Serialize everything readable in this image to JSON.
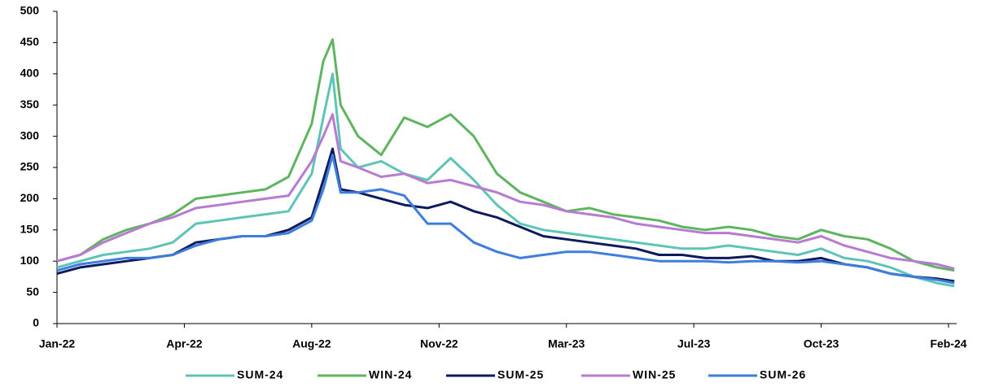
{
  "chart_data": {
    "type": "line",
    "x": [
      0,
      20,
      40,
      60,
      80,
      100,
      120,
      140,
      160,
      180,
      200,
      220,
      230,
      238,
      245,
      260,
      280,
      300,
      320,
      340,
      360,
      380,
      400,
      420,
      440,
      460,
      480,
      500,
      520,
      540,
      560,
      580,
      600,
      620,
      640,
      660,
      680,
      700,
      720,
      740,
      760,
      775
    ],
    "series": [
      {
        "name": "SUM-24",
        "color": "#5ec4b6",
        "values": [
          90,
          100,
          110,
          115,
          120,
          130,
          160,
          165,
          170,
          175,
          180,
          240,
          330,
          400,
          280,
          250,
          260,
          240,
          230,
          265,
          230,
          190,
          160,
          150,
          145,
          140,
          135,
          130,
          125,
          120,
          120,
          125,
          120,
          115,
          110,
          120,
          105,
          100,
          90,
          75,
          65,
          60
        ]
      },
      {
        "name": "WIN-24",
        "color": "#5fb45f",
        "values": [
          100,
          110,
          135,
          150,
          160,
          175,
          200,
          205,
          210,
          215,
          235,
          320,
          420,
          455,
          350,
          300,
          270,
          330,
          315,
          335,
          300,
          240,
          210,
          195,
          180,
          185,
          175,
          170,
          165,
          155,
          150,
          155,
          150,
          140,
          135,
          150,
          140,
          135,
          120,
          100,
          90,
          85
        ]
      },
      {
        "name": "SUM-25",
        "color": "#0d1b5c",
        "values": [
          80,
          90,
          95,
          100,
          105,
          110,
          130,
          135,
          140,
          140,
          150,
          170,
          230,
          280,
          215,
          210,
          200,
          190,
          185,
          195,
          180,
          170,
          155,
          140,
          135,
          130,
          125,
          120,
          110,
          110,
          105,
          105,
          108,
          100,
          100,
          105,
          95,
          90,
          80,
          75,
          72,
          68
        ]
      },
      {
        "name": "WIN-25",
        "color": "#b77bd1",
        "values": [
          100,
          110,
          130,
          145,
          160,
          170,
          185,
          190,
          195,
          200,
          205,
          260,
          300,
          335,
          260,
          250,
          235,
          240,
          225,
          230,
          220,
          210,
          195,
          190,
          180,
          175,
          170,
          160,
          155,
          150,
          145,
          145,
          140,
          135,
          130,
          140,
          125,
          115,
          105,
          100,
          95,
          88
        ]
      },
      {
        "name": "SUM-26",
        "color": "#3d7ddb",
        "values": [
          85,
          95,
          100,
          105,
          105,
          110,
          125,
          135,
          140,
          140,
          145,
          165,
          215,
          270,
          210,
          210,
          215,
          205,
          160,
          160,
          130,
          115,
          105,
          110,
          115,
          115,
          110,
          105,
          100,
          100,
          100,
          98,
          100,
          100,
          98,
          100,
          95,
          90,
          80,
          75,
          70,
          65
        ]
      }
    ],
    "xlim": [
      0,
      777
    ],
    "xticks": [
      {
        "value": 0,
        "label": "Jan-22"
      },
      {
        "value": 110,
        "label": "Apr-22"
      },
      {
        "value": 220,
        "label": "Aug-22"
      },
      {
        "value": 330,
        "label": "Nov-22"
      },
      {
        "value": 440,
        "label": "Mar-23"
      },
      {
        "value": 550,
        "label": "Jul-23"
      },
      {
        "value": 660,
        "label": "Oct-23"
      },
      {
        "value": 770,
        "label": "Feb-24"
      }
    ],
    "ylim": [
      0,
      500
    ],
    "yticks": [
      0,
      50,
      100,
      150,
      200,
      250,
      300,
      350,
      400,
      450,
      500
    ],
    "legend": "bottom"
  }
}
